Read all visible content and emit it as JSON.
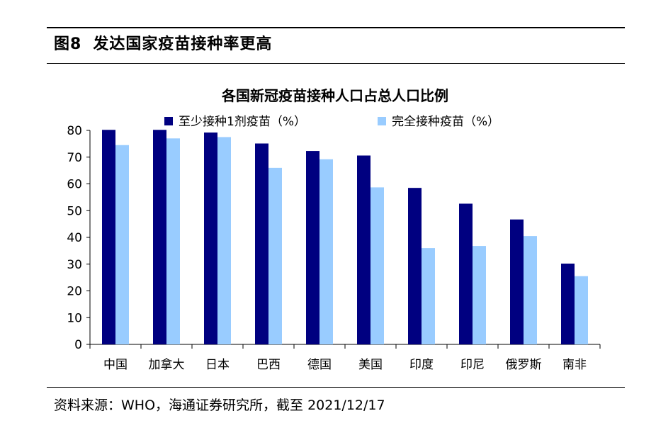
{
  "figure": {
    "number": "图8",
    "heading": "发达国家疫苗接种率更高"
  },
  "source": "资料来源：WHO，海通证券研究所，截至 2021/12/17",
  "chart_data": {
    "type": "bar",
    "title": "各国新冠疫苗接种人口占总人口比例",
    "categories": [
      "中国",
      "加拿大",
      "日本",
      "巴西",
      "德国",
      "美国",
      "印度",
      "印尼",
      "俄罗斯",
      "南非"
    ],
    "series": [
      {
        "name": "至少接种1剂疫苗（%）",
        "color": "#000080",
        "values": [
          80.2,
          80.2,
          79.2,
          75.1,
          72.3,
          70.6,
          58.5,
          52.6,
          46.7,
          30.2
        ]
      },
      {
        "name": "完全接种疫苗（%）",
        "color": "#99ccff",
        "values": [
          74.5,
          77.0,
          77.5,
          66.0,
          69.2,
          58.7,
          36.0,
          36.8,
          40.5,
          25.5
        ]
      }
    ],
    "ylim": [
      0,
      80
    ],
    "yticks": [
      0,
      10,
      20,
      30,
      40,
      50,
      60,
      70,
      80
    ],
    "xlabel": "",
    "ylabel": "",
    "legend": "top",
    "grid": false
  }
}
